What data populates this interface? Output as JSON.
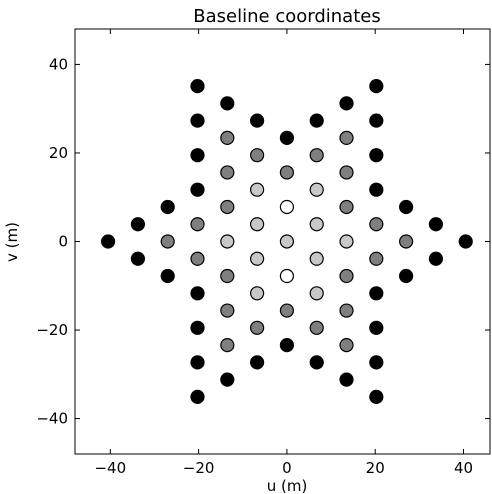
{
  "chart_data": {
    "type": "scatter",
    "title": "Baseline coordinates",
    "xlabel": "u (m)",
    "ylabel": "v (m)",
    "xlim": [
      -48,
      46
    ],
    "ylim": [
      -48,
      48
    ],
    "xticks": [
      -40,
      -20,
      0,
      20,
      40
    ],
    "yticks": [
      -40,
      -20,
      0,
      20,
      40
    ],
    "xtick_labels": [
      "−40",
      "−20",
      "0",
      "20",
      "40"
    ],
    "ytick_labels": [
      "−40",
      "−20",
      "0",
      "20",
      "40"
    ],
    "grid": false,
    "legend": "none",
    "colors": {
      "black": "#000000",
      "dark_gray": "#7f7f7f",
      "light_gray": "#c8c8c8",
      "white": "#ffffff"
    },
    "points": [
      {
        "x": 0,
        "y": 0,
        "color": "light_gray"
      },
      {
        "x": 0,
        "y": 7.8,
        "color": "white"
      },
      {
        "x": 0,
        "y": -7.8,
        "color": "white"
      },
      {
        "x": 0,
        "y": 15.6,
        "color": "dark_gray"
      },
      {
        "x": 0,
        "y": -15.6,
        "color": "dark_gray"
      },
      {
        "x": 0,
        "y": 23.4,
        "color": "black"
      },
      {
        "x": 0,
        "y": -23.4,
        "color": "black"
      },
      {
        "x": 6.75,
        "y": 27.3,
        "color": "black"
      },
      {
        "x": 6.75,
        "y": 19.5,
        "color": "dark_gray"
      },
      {
        "x": 6.75,
        "y": 11.7,
        "color": "light_gray"
      },
      {
        "x": 6.75,
        "y": 3.9,
        "color": "light_gray"
      },
      {
        "x": 6.75,
        "y": -3.9,
        "color": "light_gray"
      },
      {
        "x": 6.75,
        "y": -11.7,
        "color": "light_gray"
      },
      {
        "x": 6.75,
        "y": -19.5,
        "color": "dark_gray"
      },
      {
        "x": 6.75,
        "y": -27.3,
        "color": "black"
      },
      {
        "x": -6.75,
        "y": 27.3,
        "color": "black"
      },
      {
        "x": -6.75,
        "y": 19.5,
        "color": "dark_gray"
      },
      {
        "x": -6.75,
        "y": 11.7,
        "color": "light_gray"
      },
      {
        "x": -6.75,
        "y": 3.9,
        "color": "light_gray"
      },
      {
        "x": -6.75,
        "y": -3.9,
        "color": "light_gray"
      },
      {
        "x": -6.75,
        "y": -11.7,
        "color": "light_gray"
      },
      {
        "x": -6.75,
        "y": -19.5,
        "color": "dark_gray"
      },
      {
        "x": -6.75,
        "y": -27.3,
        "color": "black"
      },
      {
        "x": 13.5,
        "y": 31.2,
        "color": "black"
      },
      {
        "x": 13.5,
        "y": 23.4,
        "color": "dark_gray"
      },
      {
        "x": 13.5,
        "y": 15.6,
        "color": "dark_gray"
      },
      {
        "x": 13.5,
        "y": 7.8,
        "color": "dark_gray"
      },
      {
        "x": 13.5,
        "y": 0,
        "color": "light_gray"
      },
      {
        "x": 13.5,
        "y": -7.8,
        "color": "dark_gray"
      },
      {
        "x": 13.5,
        "y": -15.6,
        "color": "dark_gray"
      },
      {
        "x": 13.5,
        "y": -23.4,
        "color": "dark_gray"
      },
      {
        "x": 13.5,
        "y": -31.2,
        "color": "black"
      },
      {
        "x": -13.5,
        "y": 31.2,
        "color": "black"
      },
      {
        "x": -13.5,
        "y": 23.4,
        "color": "dark_gray"
      },
      {
        "x": -13.5,
        "y": 15.6,
        "color": "dark_gray"
      },
      {
        "x": -13.5,
        "y": 7.8,
        "color": "dark_gray"
      },
      {
        "x": -13.5,
        "y": 0,
        "color": "light_gray"
      },
      {
        "x": -13.5,
        "y": -7.8,
        "color": "dark_gray"
      },
      {
        "x": -13.5,
        "y": -15.6,
        "color": "dark_gray"
      },
      {
        "x": -13.5,
        "y": -23.4,
        "color": "dark_gray"
      },
      {
        "x": -13.5,
        "y": -31.2,
        "color": "black"
      },
      {
        "x": 20.25,
        "y": 35.1,
        "color": "black"
      },
      {
        "x": 20.25,
        "y": 27.3,
        "color": "black"
      },
      {
        "x": 20.25,
        "y": 19.5,
        "color": "black"
      },
      {
        "x": 20.25,
        "y": 11.7,
        "color": "black"
      },
      {
        "x": 20.25,
        "y": 3.9,
        "color": "dark_gray"
      },
      {
        "x": 20.25,
        "y": -3.9,
        "color": "dark_gray"
      },
      {
        "x": 20.25,
        "y": -11.7,
        "color": "black"
      },
      {
        "x": 20.25,
        "y": -19.5,
        "color": "black"
      },
      {
        "x": 20.25,
        "y": -27.3,
        "color": "black"
      },
      {
        "x": 20.25,
        "y": -35.1,
        "color": "black"
      },
      {
        "x": -20.25,
        "y": 35.1,
        "color": "black"
      },
      {
        "x": -20.25,
        "y": 27.3,
        "color": "black"
      },
      {
        "x": -20.25,
        "y": 19.5,
        "color": "black"
      },
      {
        "x": -20.25,
        "y": 11.7,
        "color": "black"
      },
      {
        "x": -20.25,
        "y": 3.9,
        "color": "dark_gray"
      },
      {
        "x": -20.25,
        "y": -3.9,
        "color": "dark_gray"
      },
      {
        "x": -20.25,
        "y": -11.7,
        "color": "black"
      },
      {
        "x": -20.25,
        "y": -19.5,
        "color": "black"
      },
      {
        "x": -20.25,
        "y": -27.3,
        "color": "black"
      },
      {
        "x": -20.25,
        "y": -35.1,
        "color": "black"
      },
      {
        "x": 27,
        "y": 7.8,
        "color": "black"
      },
      {
        "x": 27,
        "y": 0,
        "color": "dark_gray"
      },
      {
        "x": 27,
        "y": -7.8,
        "color": "black"
      },
      {
        "x": -27,
        "y": 7.8,
        "color": "black"
      },
      {
        "x": -27,
        "y": 0,
        "color": "dark_gray"
      },
      {
        "x": -27,
        "y": -7.8,
        "color": "black"
      },
      {
        "x": 33.75,
        "y": 3.9,
        "color": "black"
      },
      {
        "x": 33.75,
        "y": -3.9,
        "color": "black"
      },
      {
        "x": -33.75,
        "y": 3.9,
        "color": "black"
      },
      {
        "x": -33.75,
        "y": -3.9,
        "color": "black"
      },
      {
        "x": 40.5,
        "y": 0,
        "color": "black"
      },
      {
        "x": -40.5,
        "y": 0,
        "color": "black"
      }
    ]
  }
}
